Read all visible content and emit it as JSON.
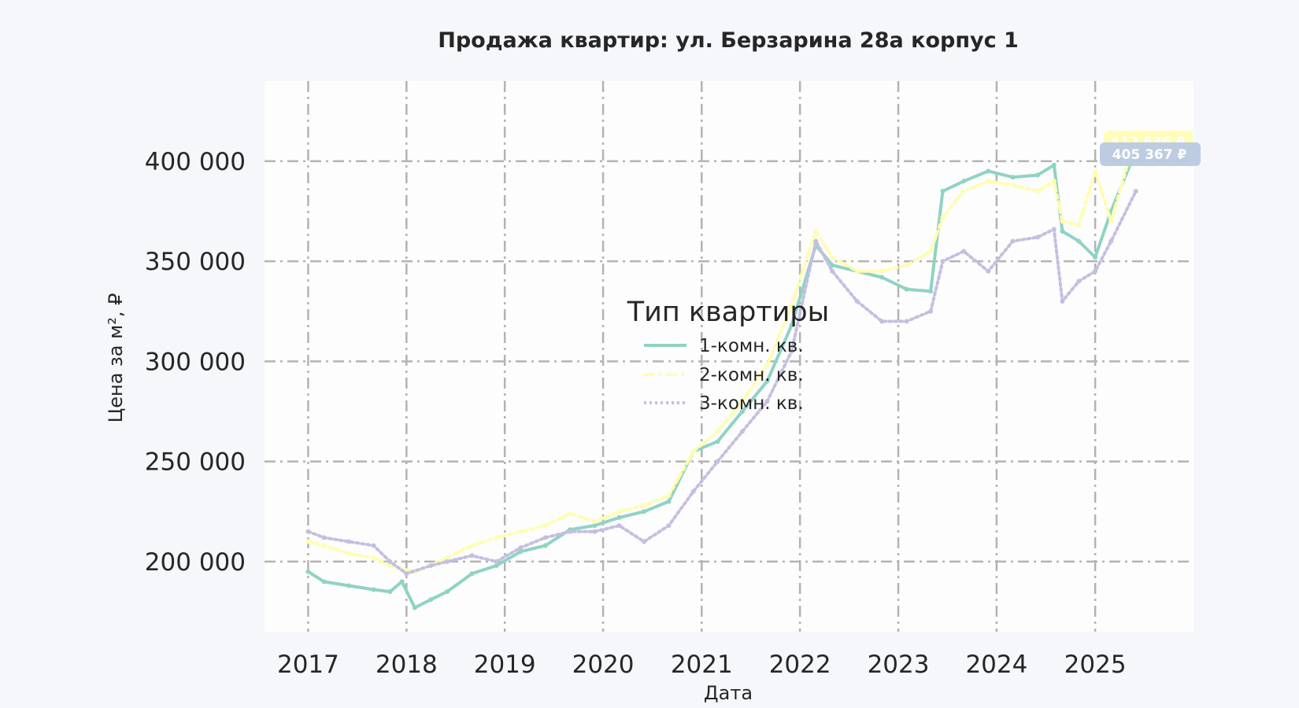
{
  "chart_data": {
    "type": "line",
    "title": "Продажа квартир: ул. Берзарина 28а корпус 1",
    "xlabel": "Дата",
    "ylabel": "Цена за м², ₽",
    "x_ticks": [
      "2017",
      "2018",
      "2019",
      "2020",
      "2021",
      "2022",
      "2023",
      "2024",
      "2025"
    ],
    "y_ticks": [
      "200 000",
      "250 000",
      "300 000",
      "350 000",
      "400 000"
    ],
    "y_tick_values": [
      200000,
      250000,
      300000,
      350000,
      400000
    ],
    "xlim": [
      "2016-07-23",
      "2026-01-01"
    ],
    "ylim": [
      165000,
      440000
    ],
    "grid": true,
    "legend": {
      "title": "Тип квартиры",
      "placement": "center",
      "entries": [
        "1-комн. кв.",
        "2-комн. кв.",
        "3-комн. кв."
      ]
    },
    "end_labels": [
      "412 636 ₽",
      "405 367 ₽"
    ],
    "series": [
      {
        "name": "1-комн. кв.",
        "color": "#8fd3c3",
        "x": [
          "2017-01-01",
          "2017-03-01",
          "2017-06-01",
          "2017-09-01",
          "2017-11-01",
          "2017-12-15",
          "2018-02-01",
          "2018-04-01",
          "2018-06-01",
          "2018-09-01",
          "2018-12-01",
          "2019-03-01",
          "2019-06-01",
          "2019-09-01",
          "2019-12-01",
          "2020-03-01",
          "2020-06-01",
          "2020-09-01",
          "2020-12-01",
          "2021-03-01",
          "2021-06-01",
          "2021-09-01",
          "2021-12-01",
          "2022-03-01",
          "2022-05-01",
          "2022-08-01",
          "2022-11-01",
          "2023-02-01",
          "2023-05-01",
          "2023-06-15",
          "2023-09-01",
          "2023-12-01",
          "2024-03-01",
          "2024-06-01",
          "2024-08-01",
          "2024-09-01",
          "2024-11-01",
          "2025-01-01",
          "2025-03-01",
          "2025-06-01"
        ],
        "values": [
          195000,
          190000,
          188000,
          186000,
          185000,
          190000,
          177000,
          181000,
          185000,
          194000,
          198000,
          205000,
          208000,
          216000,
          218000,
          222000,
          225000,
          230000,
          255000,
          260000,
          275000,
          290000,
          318000,
          358000,
          348000,
          345000,
          342000,
          336000,
          335000,
          385000,
          390000,
          395000,
          392000,
          393000,
          398000,
          365000,
          360000,
          352000,
          375000,
          405367
        ]
      },
      {
        "name": "2-комн. кв.",
        "color": "#fffdb0",
        "x": [
          "2017-01-01",
          "2017-03-01",
          "2017-06-01",
          "2017-09-01",
          "2017-11-01",
          "2018-02-01",
          "2018-04-01",
          "2018-06-01",
          "2018-09-01",
          "2018-12-01",
          "2019-03-01",
          "2019-06-01",
          "2019-09-01",
          "2019-12-01",
          "2020-03-01",
          "2020-06-01",
          "2020-09-01",
          "2020-12-01",
          "2021-03-01",
          "2021-06-01",
          "2021-09-01",
          "2021-12-01",
          "2022-03-01",
          "2022-05-01",
          "2022-08-01",
          "2022-11-01",
          "2023-02-01",
          "2023-05-01",
          "2023-06-15",
          "2023-09-01",
          "2023-12-01",
          "2024-03-01",
          "2024-06-01",
          "2024-08-01",
          "2024-09-01",
          "2024-11-01",
          "2025-01-01",
          "2025-03-01",
          "2025-06-01"
        ],
        "values": [
          210000,
          208000,
          204000,
          202000,
          198000,
          195000,
          198000,
          202000,
          208000,
          212000,
          215000,
          218000,
          224000,
          220000,
          225000,
          228000,
          233000,
          255000,
          265000,
          280000,
          298000,
          328000,
          365000,
          352000,
          345000,
          345000,
          348000,
          355000,
          372000,
          385000,
          390000,
          388000,
          385000,
          390000,
          370000,
          368000,
          395000,
          370000,
          412636
        ]
      },
      {
        "name": "3-комн. кв.",
        "color": "#c4bfe0",
        "x": [
          "2017-01-01",
          "2017-03-01",
          "2017-06-01",
          "2017-09-01",
          "2017-11-01",
          "2018-01-01",
          "2018-04-01",
          "2018-06-01",
          "2018-09-01",
          "2018-12-01",
          "2019-03-01",
          "2019-06-01",
          "2019-09-01",
          "2019-12-01",
          "2020-03-01",
          "2020-06-01",
          "2020-09-01",
          "2020-12-01",
          "2021-03-01",
          "2021-06-01",
          "2021-09-01",
          "2021-12-01",
          "2022-03-01",
          "2022-05-01",
          "2022-08-01",
          "2022-11-01",
          "2023-02-01",
          "2023-05-01",
          "2023-06-15",
          "2023-09-01",
          "2023-12-01",
          "2024-03-01",
          "2024-06-01",
          "2024-08-01",
          "2024-09-01",
          "2024-11-01",
          "2025-01-01",
          "2025-03-01",
          "2025-06-01"
        ],
        "values": [
          215000,
          212000,
          210000,
          208000,
          200000,
          194000,
          198000,
          200000,
          203000,
          200000,
          207000,
          212000,
          215000,
          215000,
          218000,
          210000,
          218000,
          235000,
          250000,
          265000,
          280000,
          305000,
          360000,
          345000,
          330000,
          320000,
          320000,
          325000,
          350000,
          355000,
          345000,
          360000,
          362000,
          366000,
          330000,
          340000,
          345000,
          360000,
          385000
        ]
      }
    ]
  }
}
